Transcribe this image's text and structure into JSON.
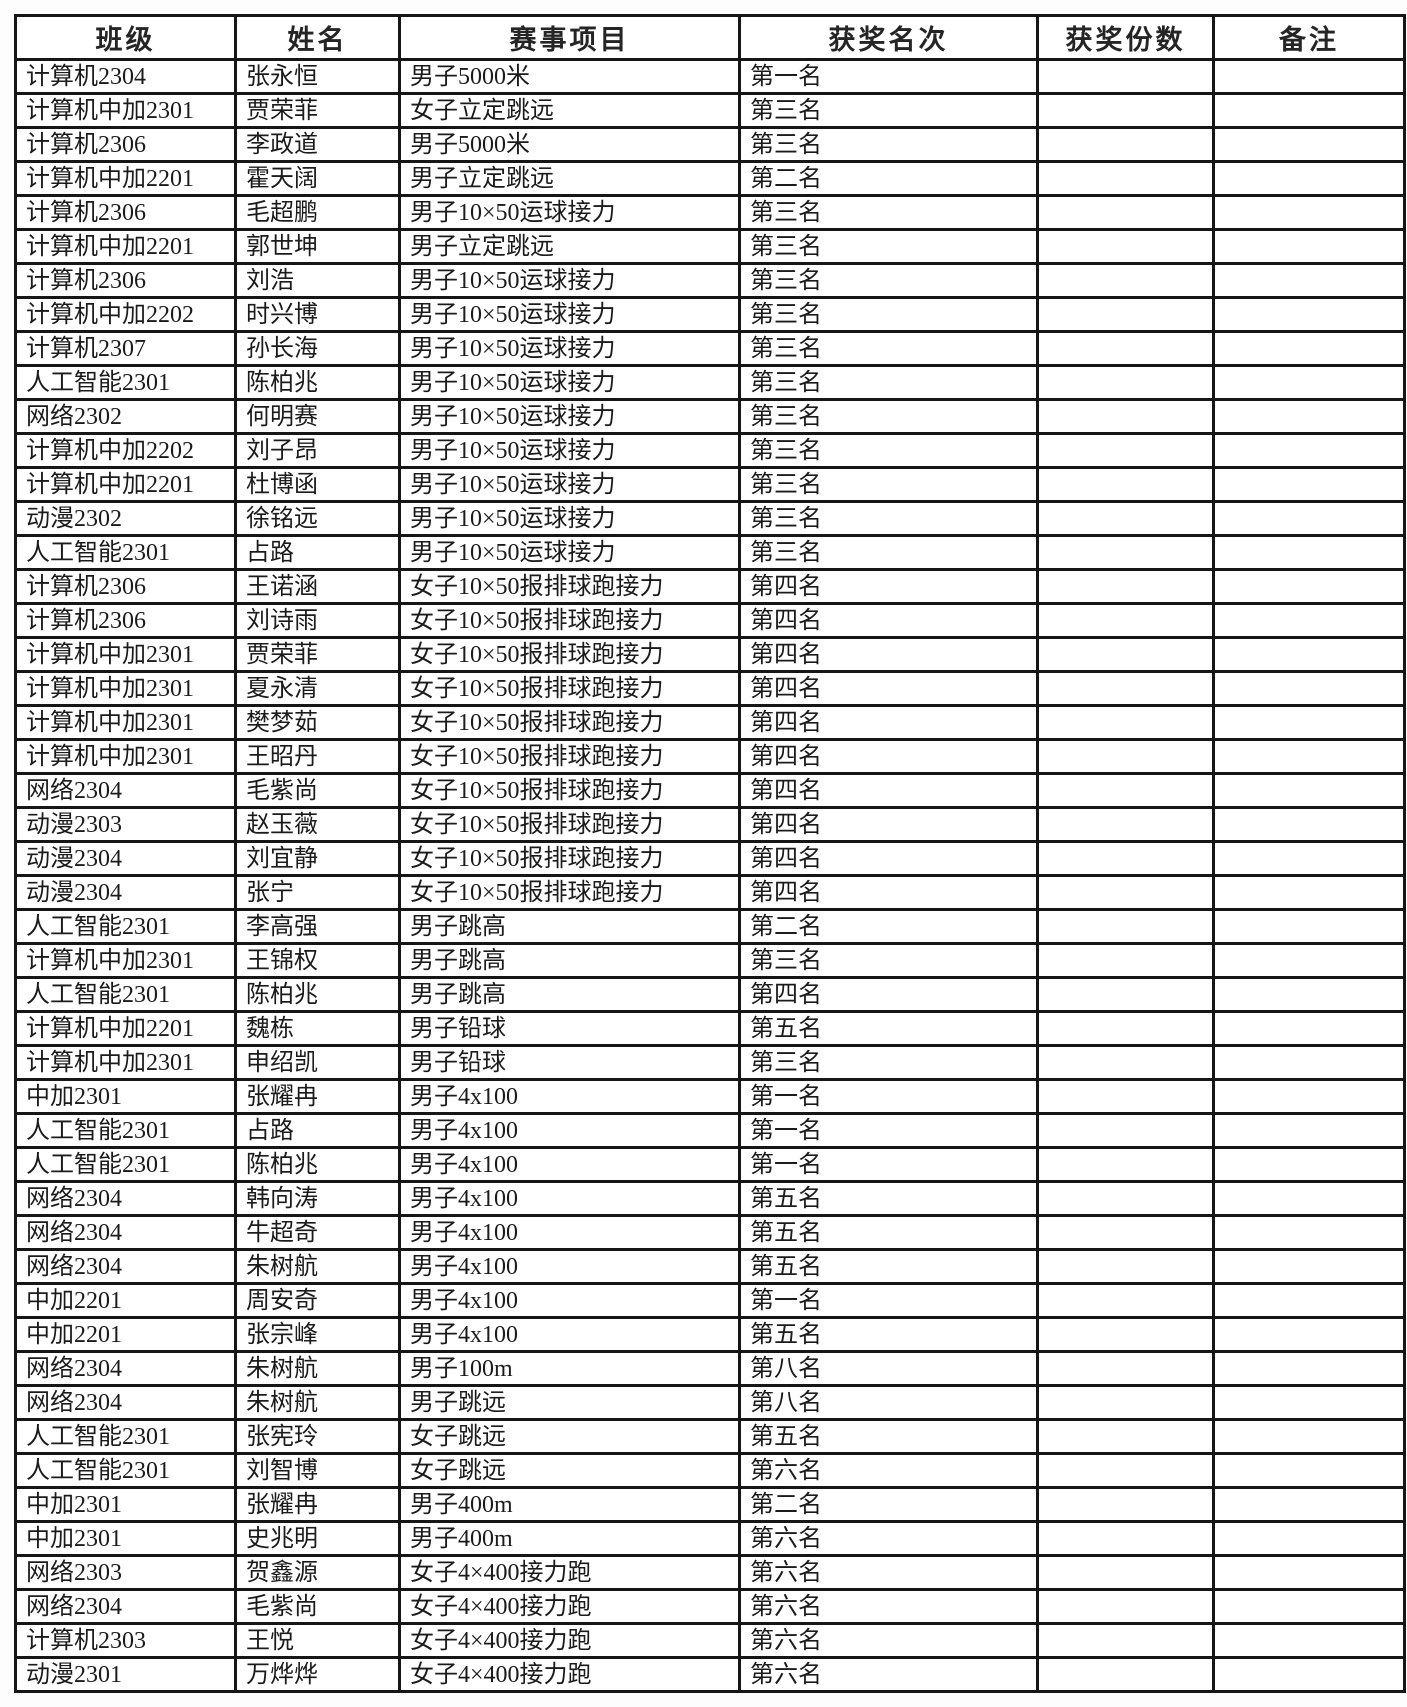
{
  "page": {
    "background_color": "#fdfdfd",
    "border_color": "#161616",
    "text_color": "#1b1b1b"
  },
  "table": {
    "headers": [
      "班级",
      "姓名",
      "赛事项目",
      "获奖名次",
      "获奖份数",
      "备注"
    ],
    "rows": [
      [
        "计算机2304",
        "张永恒",
        "男子5000米",
        "第一名",
        "",
        ""
      ],
      [
        "计算机中加2301",
        "贾荣菲",
        "女子立定跳远",
        "第三名",
        "",
        ""
      ],
      [
        "计算机2306",
        "李政道",
        "男子5000米",
        "第三名",
        "",
        ""
      ],
      [
        "计算机中加2201",
        "霍天阔",
        "男子立定跳远",
        "第二名",
        "",
        ""
      ],
      [
        "计算机2306",
        "毛超鹏",
        "男子10×50运球接力",
        "第三名",
        "",
        ""
      ],
      [
        "计算机中加2201",
        "郭世坤",
        "男子立定跳远",
        "第三名",
        "",
        ""
      ],
      [
        "计算机2306",
        "刘浩",
        "男子10×50运球接力",
        "第三名",
        "",
        ""
      ],
      [
        "计算机中加2202",
        "时兴博",
        "男子10×50运球接力",
        "第三名",
        "",
        ""
      ],
      [
        "计算机2307",
        "孙长海",
        "男子10×50运球接力",
        "第三名",
        "",
        ""
      ],
      [
        "人工智能2301",
        "陈柏兆",
        "男子10×50运球接力",
        "第三名",
        "",
        ""
      ],
      [
        "网络2302",
        "何明赛",
        "男子10×50运球接力",
        "第三名",
        "",
        ""
      ],
      [
        "计算机中加2202",
        "刘子昂",
        "男子10×50运球接力",
        "第三名",
        "",
        ""
      ],
      [
        "计算机中加2201",
        "杜博函",
        "男子10×50运球接力",
        "第三名",
        "",
        ""
      ],
      [
        "动漫2302",
        "徐铭远",
        "男子10×50运球接力",
        "第三名",
        "",
        ""
      ],
      [
        "人工智能2301",
        "占路",
        "男子10×50运球接力",
        "第三名",
        "",
        ""
      ],
      [
        "计算机2306",
        "王诺涵",
        "女子10×50报排球跑接力",
        "第四名",
        "",
        ""
      ],
      [
        "计算机2306",
        "刘诗雨",
        "女子10×50报排球跑接力",
        "第四名",
        "",
        ""
      ],
      [
        "计算机中加2301",
        "贾荣菲",
        "女子10×50报排球跑接力",
        "第四名",
        "",
        ""
      ],
      [
        "计算机中加2301",
        "夏永清",
        "女子10×50报排球跑接力",
        "第四名",
        "",
        ""
      ],
      [
        "计算机中加2301",
        "樊梦茹",
        "女子10×50报排球跑接力",
        "第四名",
        "",
        ""
      ],
      [
        "计算机中加2301",
        "王昭丹",
        "女子10×50报排球跑接力",
        "第四名",
        "",
        ""
      ],
      [
        "网络2304",
        "毛紫尚",
        "女子10×50报排球跑接力",
        "第四名",
        "",
        ""
      ],
      [
        "动漫2303",
        "赵玉薇",
        "女子10×50报排球跑接力",
        "第四名",
        "",
        ""
      ],
      [
        "动漫2304",
        "刘宜静",
        "女子10×50报排球跑接力",
        "第四名",
        "",
        ""
      ],
      [
        "动漫2304",
        "张宁",
        "女子10×50报排球跑接力",
        "第四名",
        "",
        ""
      ],
      [
        "人工智能2301",
        "李高强",
        "男子跳高",
        "第二名",
        "",
        ""
      ],
      [
        "计算机中加2301",
        "王锦权",
        "男子跳高",
        "第三名",
        "",
        ""
      ],
      [
        "人工智能2301",
        "陈柏兆",
        "男子跳高",
        "第四名",
        "",
        ""
      ],
      [
        "计算机中加2201",
        "魏栋",
        "男子铅球",
        "第五名",
        "",
        ""
      ],
      [
        "计算机中加2301",
        "申绍凯",
        "男子铅球",
        "第三名",
        "",
        ""
      ],
      [
        "中加2301",
        "张耀冉",
        "男子4x100",
        "第一名",
        "",
        ""
      ],
      [
        "人工智能2301",
        "占路",
        "男子4x100",
        "第一名",
        "",
        ""
      ],
      [
        "人工智能2301",
        "陈柏兆",
        "男子4x100",
        "第一名",
        "",
        ""
      ],
      [
        "网络2304",
        "韩向涛",
        "男子4x100",
        "第五名",
        "",
        ""
      ],
      [
        "网络2304",
        "牛超奇",
        "男子4x100",
        "第五名",
        "",
        ""
      ],
      [
        "网络2304",
        "朱树航",
        "男子4x100",
        "第五名",
        "",
        ""
      ],
      [
        "中加2201",
        "周安奇",
        "男子4x100",
        "第一名",
        "",
        ""
      ],
      [
        "中加2201",
        "张宗峰",
        "男子4x100",
        "第五名",
        "",
        ""
      ],
      [
        "网络2304",
        "朱树航",
        "男子100m",
        "第八名",
        "",
        ""
      ],
      [
        "网络2304",
        "朱树航",
        "男子跳远",
        "第八名",
        "",
        ""
      ],
      [
        "人工智能2301",
        "张宪玲",
        "女子跳远",
        "第五名",
        "",
        ""
      ],
      [
        "人工智能2301",
        "刘智博",
        "女子跳远",
        "第六名",
        "",
        ""
      ],
      [
        "中加2301",
        "张耀冉",
        "男子400m",
        "第二名",
        "",
        ""
      ],
      [
        "中加2301",
        "史兆明",
        "男子400m",
        "第六名",
        "",
        ""
      ],
      [
        "网络2303",
        "贺鑫源",
        "女子4×400接力跑",
        "第六名",
        "",
        ""
      ],
      [
        "网络2304",
        "毛紫尚",
        "女子4×400接力跑",
        "第六名",
        "",
        ""
      ],
      [
        "计算机2303",
        "王悦",
        "女子4×400接力跑",
        "第六名",
        "",
        ""
      ],
      [
        "动漫2301",
        "万烨烨",
        "女子4×400接力跑",
        "第六名",
        "",
        ""
      ]
    ]
  }
}
